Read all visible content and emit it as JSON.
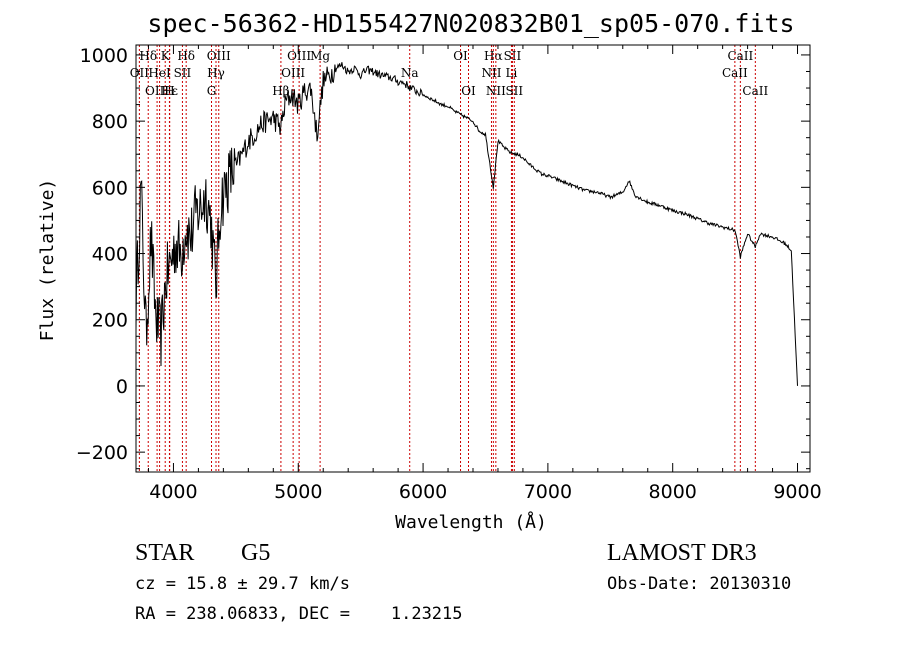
{
  "chart_data": {
    "type": "line",
    "title": "spec-56362-HD155427N020832B01_sp05-070.fits",
    "xlabel": "Wavelength (Å)",
    "ylabel": "Flux (relative)",
    "xlim": [
      3700,
      9100
    ],
    "ylim": [
      -260,
      1030
    ],
    "xticks": [
      4000,
      5000,
      6000,
      7000,
      8000,
      9000
    ],
    "yticks": [
      -200,
      0,
      200,
      400,
      600,
      800,
      1000
    ],
    "spectrum_anchor_points": {
      "x": [
        3700,
        3740,
        3780,
        3820,
        3860,
        3900,
        3940,
        3980,
        4020,
        4060,
        4100,
        4140,
        4180,
        4220,
        4260,
        4300,
        4340,
        4380,
        4420,
        4460,
        4500,
        4550,
        4600,
        4650,
        4700,
        4750,
        4800,
        4860,
        4900,
        4950,
        5000,
        5050,
        5100,
        5150,
        5200,
        5250,
        5300,
        5350,
        5400,
        5450,
        5500,
        5550,
        5600,
        5650,
        5700,
        5750,
        5800,
        5850,
        5900,
        5950,
        6000,
        6050,
        6100,
        6150,
        6200,
        6250,
        6300,
        6350,
        6400,
        6450,
        6500,
        6563,
        6600,
        6650,
        6700,
        6750,
        6800,
        6850,
        6900,
        6950,
        7000,
        7100,
        7200,
        7300,
        7400,
        7500,
        7600,
        7650,
        7700,
        7800,
        7900,
        8000,
        8100,
        8200,
        8300,
        8400,
        8500,
        8542,
        8600,
        8662,
        8700,
        8800,
        8900,
        8950,
        9000
      ],
      "y": [
        250,
        600,
        150,
        450,
        200,
        150,
        320,
        380,
        430,
        400,
        480,
        450,
        520,
        540,
        580,
        500,
        300,
        560,
        600,
        640,
        660,
        700,
        740,
        760,
        790,
        800,
        810,
        780,
        860,
        880,
        850,
        890,
        900,
        760,
        920,
        940,
        960,
        970,
        950,
        960,
        940,
        955,
        950,
        940,
        935,
        930,
        920,
        915,
        900,
        890,
        880,
        870,
        860,
        850,
        845,
        830,
        820,
        810,
        800,
        770,
        760,
        600,
        740,
        720,
        705,
        700,
        690,
        670,
        655,
        640,
        635,
        620,
        605,
        590,
        585,
        570,
        585,
        620,
        575,
        555,
        545,
        530,
        520,
        505,
        490,
        480,
        470,
        390,
        460,
        420,
        460,
        450,
        430,
        410,
        0
      ]
    },
    "emission_lines": [
      {
        "name": "Hδ",
        "wavelength": 3798,
        "row": 0
      },
      {
        "name": "OII",
        "wavelength": 3727,
        "row": 1
      },
      {
        "name": "OIII",
        "wavelength": 3869,
        "row": 2
      },
      {
        "name": "K",
        "wavelength": 3934,
        "row": 0
      },
      {
        "name": "HeI",
        "wavelength": 3889,
        "row": 1
      },
      {
        "name": "Hε",
        "wavelength": 3970,
        "row": 2
      },
      {
        "name": "SII",
        "wavelength": 4072,
        "row": 1
      },
      {
        "name": "H",
        "wavelength": 3968,
        "row": 2
      },
      {
        "name": "Hδ",
        "wavelength": 4102,
        "row": 0
      },
      {
        "name": "OIII",
        "wavelength": 4363,
        "row": 0
      },
      {
        "name": "Hγ",
        "wavelength": 4341,
        "row": 1
      },
      {
        "name": "G",
        "wavelength": 4305,
        "row": 2
      },
      {
        "name": "Hβ",
        "wavelength": 4861,
        "row": 2
      },
      {
        "name": "OIII",
        "wavelength": 5007,
        "row": 0
      },
      {
        "name": "OIII",
        "wavelength": 4959,
        "row": 1
      },
      {
        "name": "Mg",
        "wavelength": 5175,
        "row": 0
      },
      {
        "name": "Na",
        "wavelength": 5893,
        "row": 1
      },
      {
        "name": "OI",
        "wavelength": 6300,
        "row": 0
      },
      {
        "name": "OI",
        "wavelength": 6364,
        "row": 2
      },
      {
        "name": "Hα",
        "wavelength": 6563,
        "row": 0
      },
      {
        "name": "NII",
        "wavelength": 6548,
        "row": 1
      },
      {
        "name": "NII",
        "wavelength": 6583,
        "row": 2
      },
      {
        "name": "SII",
        "wavelength": 6716,
        "row": 0
      },
      {
        "name": "Li",
        "wavelength": 6708,
        "row": 1
      },
      {
        "name": "SII",
        "wavelength": 6731,
        "row": 2
      },
      {
        "name": "CaII",
        "wavelength": 8542,
        "row": 0
      },
      {
        "name": "CaII",
        "wavelength": 8498,
        "row": 1
      },
      {
        "name": "CaII",
        "wavelength": 8662,
        "row": 2
      }
    ]
  },
  "info": {
    "class": "STAR",
    "subclass": "G5",
    "survey": "LAMOST DR3",
    "redshift": "cz = 15.8 ± 29.7 km/s",
    "obs_date": "Obs-Date: 20130310",
    "coords": "RA = 238.06833, DEC =    1.23215"
  }
}
